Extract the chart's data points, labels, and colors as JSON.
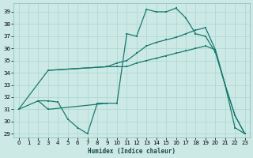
{
  "bg_color": "#cce9e6",
  "grid_color": "#aad5d1",
  "line_color": "#1a7a6e",
  "xlabel": "Humidex (Indice chaleur)",
  "xlim": [
    -0.5,
    23.5
  ],
  "ylim": [
    28.7,
    39.7
  ],
  "yticks": [
    29,
    30,
    31,
    32,
    33,
    34,
    35,
    36,
    37,
    38,
    39
  ],
  "xticks": [
    0,
    1,
    2,
    3,
    4,
    5,
    6,
    7,
    8,
    9,
    10,
    11,
    12,
    13,
    14,
    15,
    16,
    17,
    18,
    19,
    20,
    21,
    22,
    23
  ],
  "line_spiky_x": [
    0,
    2,
    3,
    9,
    10,
    11,
    12,
    13,
    14,
    15,
    16,
    17,
    18,
    19,
    20,
    21,
    22,
    23
  ],
  "line_spiky_y": [
    31.0,
    31.7,
    31.0,
    31.5,
    31.5,
    37.2,
    37.0,
    39.2,
    39.0,
    39.0,
    39.3,
    38.5,
    37.2,
    37.0,
    35.7,
    33.0,
    30.5,
    29.0
  ],
  "line_upper_x": [
    3,
    9,
    10,
    11,
    12,
    13,
    14,
    15,
    16,
    17,
    18,
    19,
    20,
    21,
    22,
    23
  ],
  "line_upper_y": [
    34.2,
    34.5,
    34.8,
    35.0,
    35.6,
    36.2,
    36.5,
    36.7,
    36.9,
    37.2,
    37.5,
    37.7,
    35.9,
    33.0,
    30.5,
    29.0
  ],
  "line_lower_x": [
    0,
    3,
    9,
    10,
    11,
    12,
    13,
    14,
    15,
    16,
    17,
    18,
    19,
    20,
    21,
    22,
    23
  ],
  "line_lower_y": [
    31.0,
    34.2,
    34.5,
    34.5,
    34.5,
    34.8,
    35.0,
    35.2,
    35.4,
    35.6,
    35.8,
    36.0,
    36.2,
    35.9,
    33.0,
    29.5,
    29.0
  ],
  "line_zigzag_x": [
    2,
    3,
    4,
    5,
    6,
    7,
    8,
    9
  ],
  "line_zigzag_y": [
    31.7,
    31.7,
    31.6,
    30.2,
    29.5,
    29.0,
    31.5,
    31.5
  ]
}
